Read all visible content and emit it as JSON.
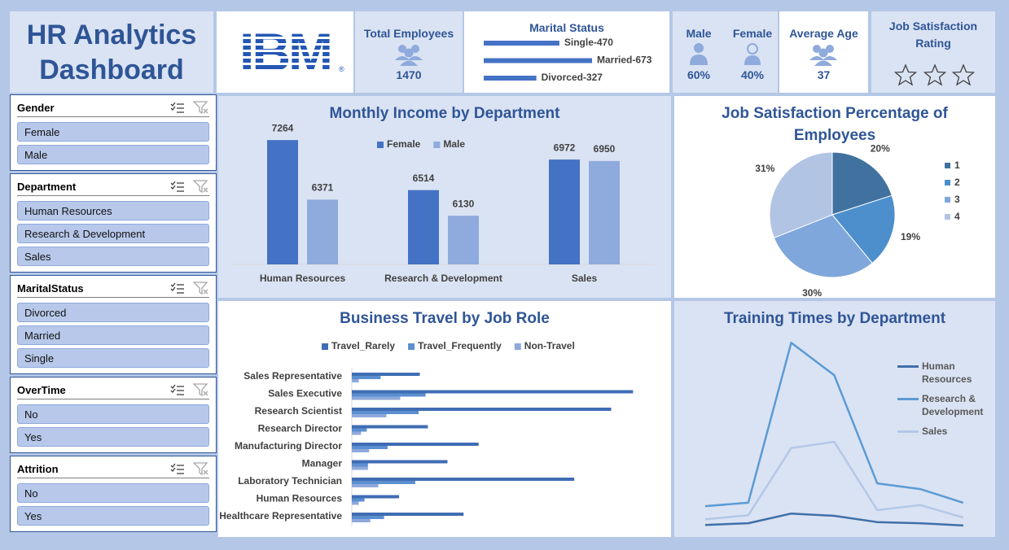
{
  "header": {
    "title": "HR Analytics Dashboard",
    "logo": "IBM",
    "logo_mark": "®"
  },
  "kpis": {
    "total_employees": {
      "label": "Total Employees",
      "value": 1470
    },
    "male": {
      "label": "Male",
      "value": "60%"
    },
    "female": {
      "label": "Female",
      "value": "40%"
    },
    "average_age": {
      "label": "Average Age",
      "value": 37
    },
    "job_satisfaction_rating": {
      "label": "Job Satisfaction Rating"
    }
  },
  "slicers": [
    {
      "title": "Gender",
      "items": [
        "Female",
        "Male"
      ]
    },
    {
      "title": "Department",
      "items": [
        "Human Resources",
        "Research & Development",
        "Sales"
      ]
    },
    {
      "title": "MaritalStatus",
      "items": [
        "Divorced",
        "Married",
        "Single"
      ]
    },
    {
      "title": "OverTime",
      "items": [
        "No",
        "Yes"
      ]
    },
    {
      "title": "Attrition",
      "items": [
        "No",
        "Yes"
      ]
    }
  ],
  "chart_data": [
    {
      "type": "bar",
      "title": "Marital Status",
      "values": [
        470,
        673,
        327
      ],
      "value_labels": [
        "Single-470",
        "Married-673",
        "Divorced-327"
      ],
      "color": "#4472c4"
    },
    {
      "type": "bar",
      "title": "Monthly Income by Department",
      "categories": [
        "Human Resources",
        "Research & Development",
        "Sales"
      ],
      "series": [
        {
          "name": "Female",
          "color": "#4472c4",
          "values": [
            7264,
            6514,
            6972
          ]
        },
        {
          "name": "Male",
          "color": "#8faadc",
          "values": [
            6371,
            6130,
            6950
          ]
        }
      ],
      "ylim": [
        5400,
        7400
      ]
    },
    {
      "type": "pie",
      "title": "Job Satisfaction Percentage of Employees",
      "categories": [
        "1",
        "2",
        "3",
        "4"
      ],
      "values": [
        20,
        19,
        30,
        31
      ],
      "value_labels": [
        "20%",
        "19%",
        "30%",
        "31%"
      ],
      "colors": [
        "#41729f",
        "#4d8fcc",
        "#7fa7dc",
        "#b2c4e4"
      ]
    },
    {
      "type": "bar",
      "horizontal": true,
      "title": "Business Travel by Job Role",
      "categories": [
        "Sales Representative",
        "Sales Executive",
        "Research Scientist",
        "Research Director",
        "Manufacturing Director",
        "Manager",
        "Laboratory Technician",
        "Human Resources",
        "Healthcare Representative"
      ],
      "series": [
        {
          "name": "Travel_Rarely",
          "color": "#3f6db3",
          "values": [
            59,
            244,
            225,
            66,
            110,
            83,
            193,
            41,
            97
          ]
        },
        {
          "name": "Travel_Frequently",
          "color": "#5b8fd0",
          "values": [
            25,
            64,
            58,
            13,
            31,
            14,
            55,
            11,
            28
          ]
        },
        {
          "name": "Non-Travel",
          "color": "#8fa9dc",
          "values": [
            6,
            42,
            30,
            8,
            15,
            14,
            23,
            6,
            16
          ]
        }
      ],
      "xlim": [
        0,
        260
      ]
    },
    {
      "type": "line",
      "title": "Training Times by Department",
      "series": [
        {
          "name": "Human Resources",
          "color": "#3f6fa8",
          "values": [
            14,
            17,
            34,
            30,
            19,
            17,
            13
          ]
        },
        {
          "name": "Research & Development",
          "color": "#5b9bd5",
          "values": [
            47,
            53,
            334,
            277,
            87,
            77,
            53
          ]
        },
        {
          "name": "Sales",
          "color": "#b4c7e7",
          "values": [
            24,
            31,
            149,
            160,
            40,
            49,
            27
          ]
        }
      ],
      "ylim": [
        0,
        400
      ]
    }
  ]
}
